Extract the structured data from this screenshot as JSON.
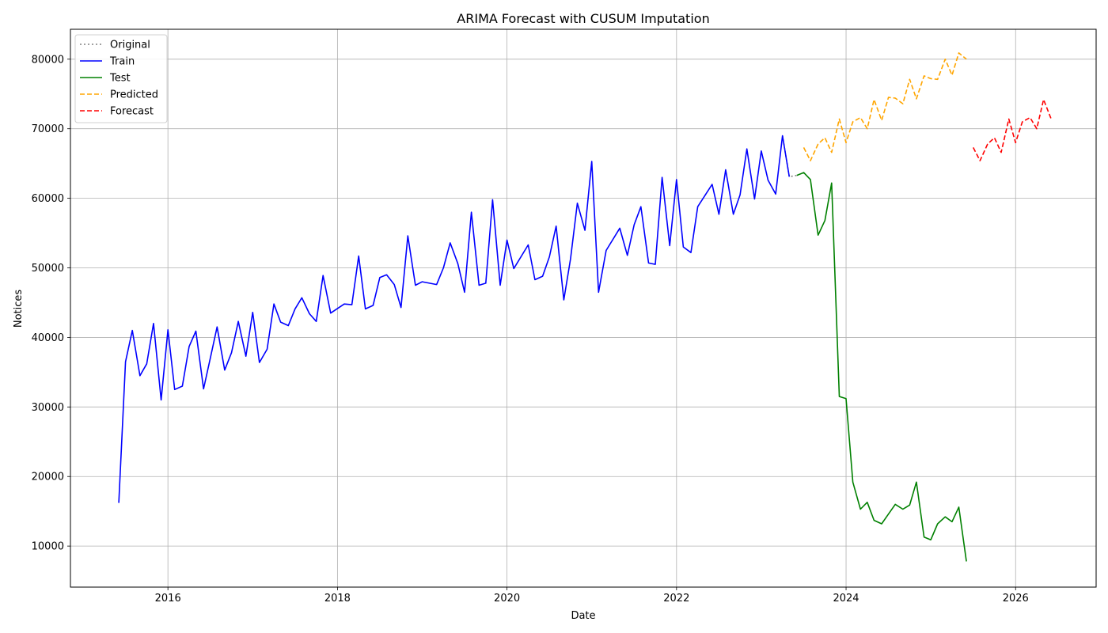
{
  "chart_data": {
    "type": "line",
    "title": "ARIMA Forecast with CUSUM Imputation",
    "xlabel": "Date",
    "ylabel": "Notices",
    "xlim": [
      2014.85,
      2026.95
    ],
    "ylim": [
      4100,
      84300
    ],
    "x_ticks": [
      2016,
      2018,
      2020,
      2022,
      2024,
      2026
    ],
    "x_tick_labels": [
      "2016",
      "2018",
      "2020",
      "2022",
      "2024",
      "2026"
    ],
    "y_ticks": [
      10000,
      20000,
      30000,
      40000,
      50000,
      60000,
      70000,
      80000
    ],
    "y_tick_labels": [
      "10000",
      "20000",
      "30000",
      "40000",
      "50000",
      "60000",
      "70000",
      "80000"
    ],
    "grid": true,
    "legend_position": "upper left",
    "legend": [
      "Original",
      "Train",
      "Test",
      "Predicted",
      "Forecast"
    ],
    "series": [
      {
        "name": "Original",
        "color": "#808080",
        "style": "dotted",
        "x": [
          2023.25,
          2023.33,
          2023.42
        ],
        "y": [
          69000,
          63100,
          63300
        ]
      },
      {
        "name": "Train",
        "color": "#0000ff",
        "style": "solid",
        "x": [
          2015.42,
          2015.5,
          2015.58,
          2015.67,
          2015.75,
          2015.83,
          2015.92,
          2016.0,
          2016.08,
          2016.17,
          2016.25,
          2016.33,
          2016.42,
          2016.5,
          2016.58,
          2016.67,
          2016.75,
          2016.83,
          2016.92,
          2017.0,
          2017.08,
          2017.17,
          2017.25,
          2017.33,
          2017.42,
          2017.5,
          2017.58,
          2017.67,
          2017.75,
          2017.83,
          2017.92,
          2018.08,
          2018.17,
          2018.25,
          2018.33,
          2018.42,
          2018.5,
          2018.58,
          2018.67,
          2018.75,
          2018.83,
          2018.92,
          2019.0,
          2019.17,
          2019.25,
          2019.33,
          2019.42,
          2019.5,
          2019.58,
          2019.67,
          2019.75,
          2019.83,
          2019.92,
          2020.0,
          2020.08,
          2020.25,
          2020.33,
          2020.42,
          2020.5,
          2020.58,
          2020.67,
          2020.75,
          2020.83,
          2020.92,
          2021.0,
          2021.08,
          2021.17,
          2021.33,
          2021.42,
          2021.5,
          2021.58,
          2021.67,
          2021.75,
          2021.83,
          2021.92,
          2022.0,
          2022.08,
          2022.17,
          2022.25,
          2022.42,
          2022.5,
          2022.58,
          2022.67,
          2022.75,
          2022.83,
          2022.92,
          2023.0,
          2023.08,
          2023.17,
          2023.25,
          2023.33
        ],
        "y": [
          16200,
          36500,
          41000,
          34500,
          36200,
          42000,
          31000,
          41100,
          32500,
          33000,
          38700,
          40900,
          32600,
          37000,
          41500,
          35300,
          37800,
          42300,
          37300,
          43600,
          36400,
          38300,
          44800,
          42200,
          41700,
          44100,
          45700,
          43400,
          42300,
          48900,
          43500,
          44800,
          44700,
          51700,
          44100,
          44600,
          48600,
          49000,
          47600,
          44300,
          54600,
          47500,
          48000,
          47600,
          50000,
          53600,
          50600,
          46500,
          58000,
          47500,
          47800,
          59800,
          47500,
          54000,
          49900,
          53300,
          48300,
          48800,
          51600,
          56000,
          45400,
          51300,
          59300,
          55400,
          65300,
          46500,
          52500,
          55700,
          51800,
          56200,
          58800,
          50700,
          50500,
          63000,
          53200,
          62700,
          53000,
          52200,
          58800,
          62000,
          57700,
          64100,
          57700,
          60500,
          67100,
          59900,
          66800,
          62600,
          60600,
          69000,
          63100
        ]
      },
      {
        "name": "Test",
        "color": "#008000",
        "style": "solid",
        "x": [
          2023.42,
          2023.5,
          2023.58,
          2023.67,
          2023.75,
          2023.83,
          2023.92,
          2024.0,
          2024.08,
          2024.17,
          2024.25,
          2024.33,
          2024.42,
          2024.5,
          2024.58,
          2024.67,
          2024.75,
          2024.83,
          2024.92,
          2025.0,
          2025.08,
          2025.17,
          2025.25,
          2025.33,
          2025.42
        ],
        "y": [
          63300,
          63700,
          62700,
          54700,
          56800,
          62200,
          31500,
          31200,
          19200,
          15300,
          16300,
          13700,
          13200,
          14600,
          16000,
          15300,
          15900,
          19200,
          11300,
          10900,
          13200,
          14200,
          13500,
          15600,
          7800
        ]
      },
      {
        "name": "Predicted",
        "color": "#ffa500",
        "style": "dashed",
        "x": [
          2023.5,
          2023.58,
          2023.67,
          2023.75,
          2023.83,
          2023.92,
          2024.0,
          2024.08,
          2024.17,
          2024.25,
          2024.33,
          2024.42,
          2024.5,
          2024.58,
          2024.67,
          2024.75,
          2024.83,
          2024.92,
          2025.0,
          2025.08,
          2025.17,
          2025.25,
          2025.33,
          2025.42
        ],
        "y": [
          67300,
          65400,
          67800,
          68700,
          66600,
          71400,
          68000,
          71000,
          71600,
          70000,
          74200,
          71200,
          74500,
          74400,
          73600,
          77100,
          74300,
          77600,
          77200,
          77100,
          80000,
          77700,
          80900,
          80000
        ]
      },
      {
        "name": "Forecast",
        "color": "#ff0000",
        "style": "dashed",
        "x": [
          2025.5,
          2025.58,
          2025.67,
          2025.75,
          2025.83,
          2025.92,
          2026.0,
          2026.08,
          2026.17,
          2026.25,
          2026.33,
          2026.42
        ],
        "y": [
          67300,
          65400,
          67800,
          68700,
          66600,
          71400,
          68000,
          71000,
          71600,
          70000,
          74200,
          71400
        ]
      }
    ]
  }
}
